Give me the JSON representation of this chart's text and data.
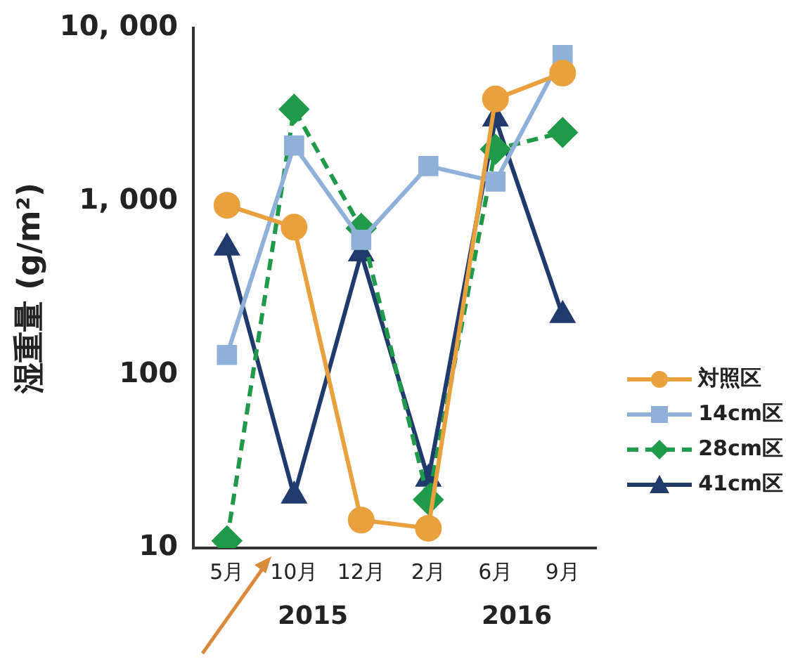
{
  "chart_data": {
    "type": "line",
    "ylabel": "湿重量 (g/m²)",
    "categories": [
      "5月",
      "10月",
      "12月",
      "2月",
      "6月",
      "9月"
    ],
    "series": [
      {
        "name": "対照区",
        "color": "#e8a13c",
        "marker": "circle",
        "line_style": "solid",
        "values": [
          950,
          710,
          14.5,
          13,
          3900,
          5500
        ]
      },
      {
        "name": "14cm区",
        "color": "#8fb0d8",
        "marker": "square",
        "line_style": "solid",
        "values": [
          130,
          2100,
          600,
          1600,
          1300,
          7000
        ]
      },
      {
        "name": "28cm区",
        "color": "#1f9a48",
        "marker": "diamond",
        "line_style": "dashed",
        "values": [
          11,
          3400,
          700,
          19,
          2000,
          2500
        ]
      },
      {
        "name": "41cm区",
        "color": "#1f3a6b",
        "marker": "triangle",
        "line_style": "solid",
        "values": [
          540,
          20,
          500,
          25,
          3000,
          220
        ]
      }
    ],
    "log": true,
    "ylim": [
      10,
      10000
    ],
    "yticks": [
      {
        "value": 10,
        "label": "10"
      },
      {
        "value": 100,
        "label": "100"
      },
      {
        "value": 1000,
        "label": "1, 000"
      },
      {
        "value": 10000,
        "label": "10, 000"
      }
    ],
    "grid": false,
    "legend": "bottom right",
    "annotations": [
      "2015",
      "2016"
    ]
  }
}
